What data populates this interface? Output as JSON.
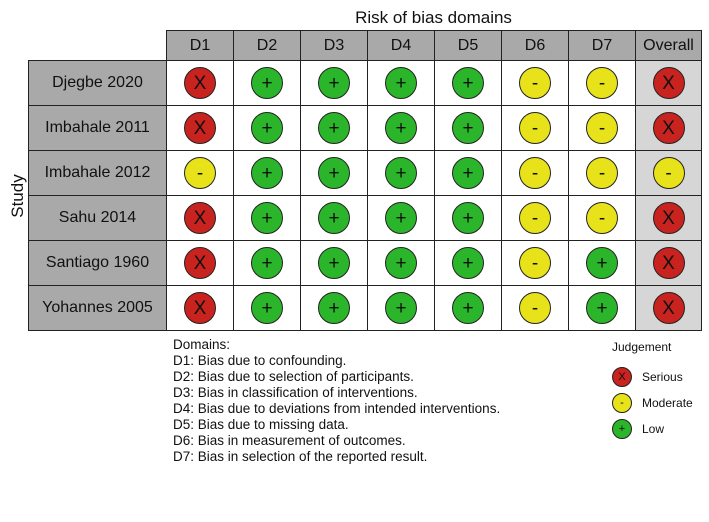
{
  "title": "Risk of bias domains",
  "ylabel": "Study",
  "columns": [
    "D1",
    "D2",
    "D3",
    "D4",
    "D5",
    "D6",
    "D7",
    "Overall"
  ],
  "judgements": {
    "serious": {
      "symbol": "X",
      "color": "#c8231e",
      "label": "Serious"
    },
    "moderate": {
      "symbol": "-",
      "color": "#e8e21a",
      "label": "Moderate"
    },
    "low": {
      "symbol": "+",
      "color": "#2bb52b",
      "label": "Low"
    }
  },
  "studies": [
    {
      "name": "Djegbe 2020",
      "ratings": [
        "serious",
        "low",
        "low",
        "low",
        "low",
        "moderate",
        "moderate",
        "serious"
      ]
    },
    {
      "name": "Imbahale 2011",
      "ratings": [
        "serious",
        "low",
        "low",
        "low",
        "low",
        "moderate",
        "moderate",
        "serious"
      ]
    },
    {
      "name": "Imbahale 2012",
      "ratings": [
        "moderate",
        "low",
        "low",
        "low",
        "low",
        "moderate",
        "moderate",
        "moderate"
      ]
    },
    {
      "name": "Sahu 2014",
      "ratings": [
        "serious",
        "low",
        "low",
        "low",
        "low",
        "moderate",
        "moderate",
        "serious"
      ]
    },
    {
      "name": "Santiago 1960",
      "ratings": [
        "serious",
        "low",
        "low",
        "low",
        "low",
        "moderate",
        "low",
        "serious"
      ]
    },
    {
      "name": "Yohannes 2005",
      "ratings": [
        "serious",
        "low",
        "low",
        "low",
        "low",
        "moderate",
        "low",
        "serious"
      ]
    }
  ],
  "domains_legend": {
    "heading": "Domains:",
    "items": [
      "D1: Bias due to confounding.",
      "D2: Bias due to selection of participants.",
      "D3: Bias in classification of interventions.",
      "D4: Bias due to deviations from intended interventions.",
      "D5: Bias due to missing data.",
      "D6: Bias in measurement of outcomes.",
      "D7: Bias in selection of the reported result."
    ]
  },
  "judgement_legend": {
    "heading": "Judgement",
    "order": [
      "serious",
      "moderate",
      "low"
    ]
  }
}
